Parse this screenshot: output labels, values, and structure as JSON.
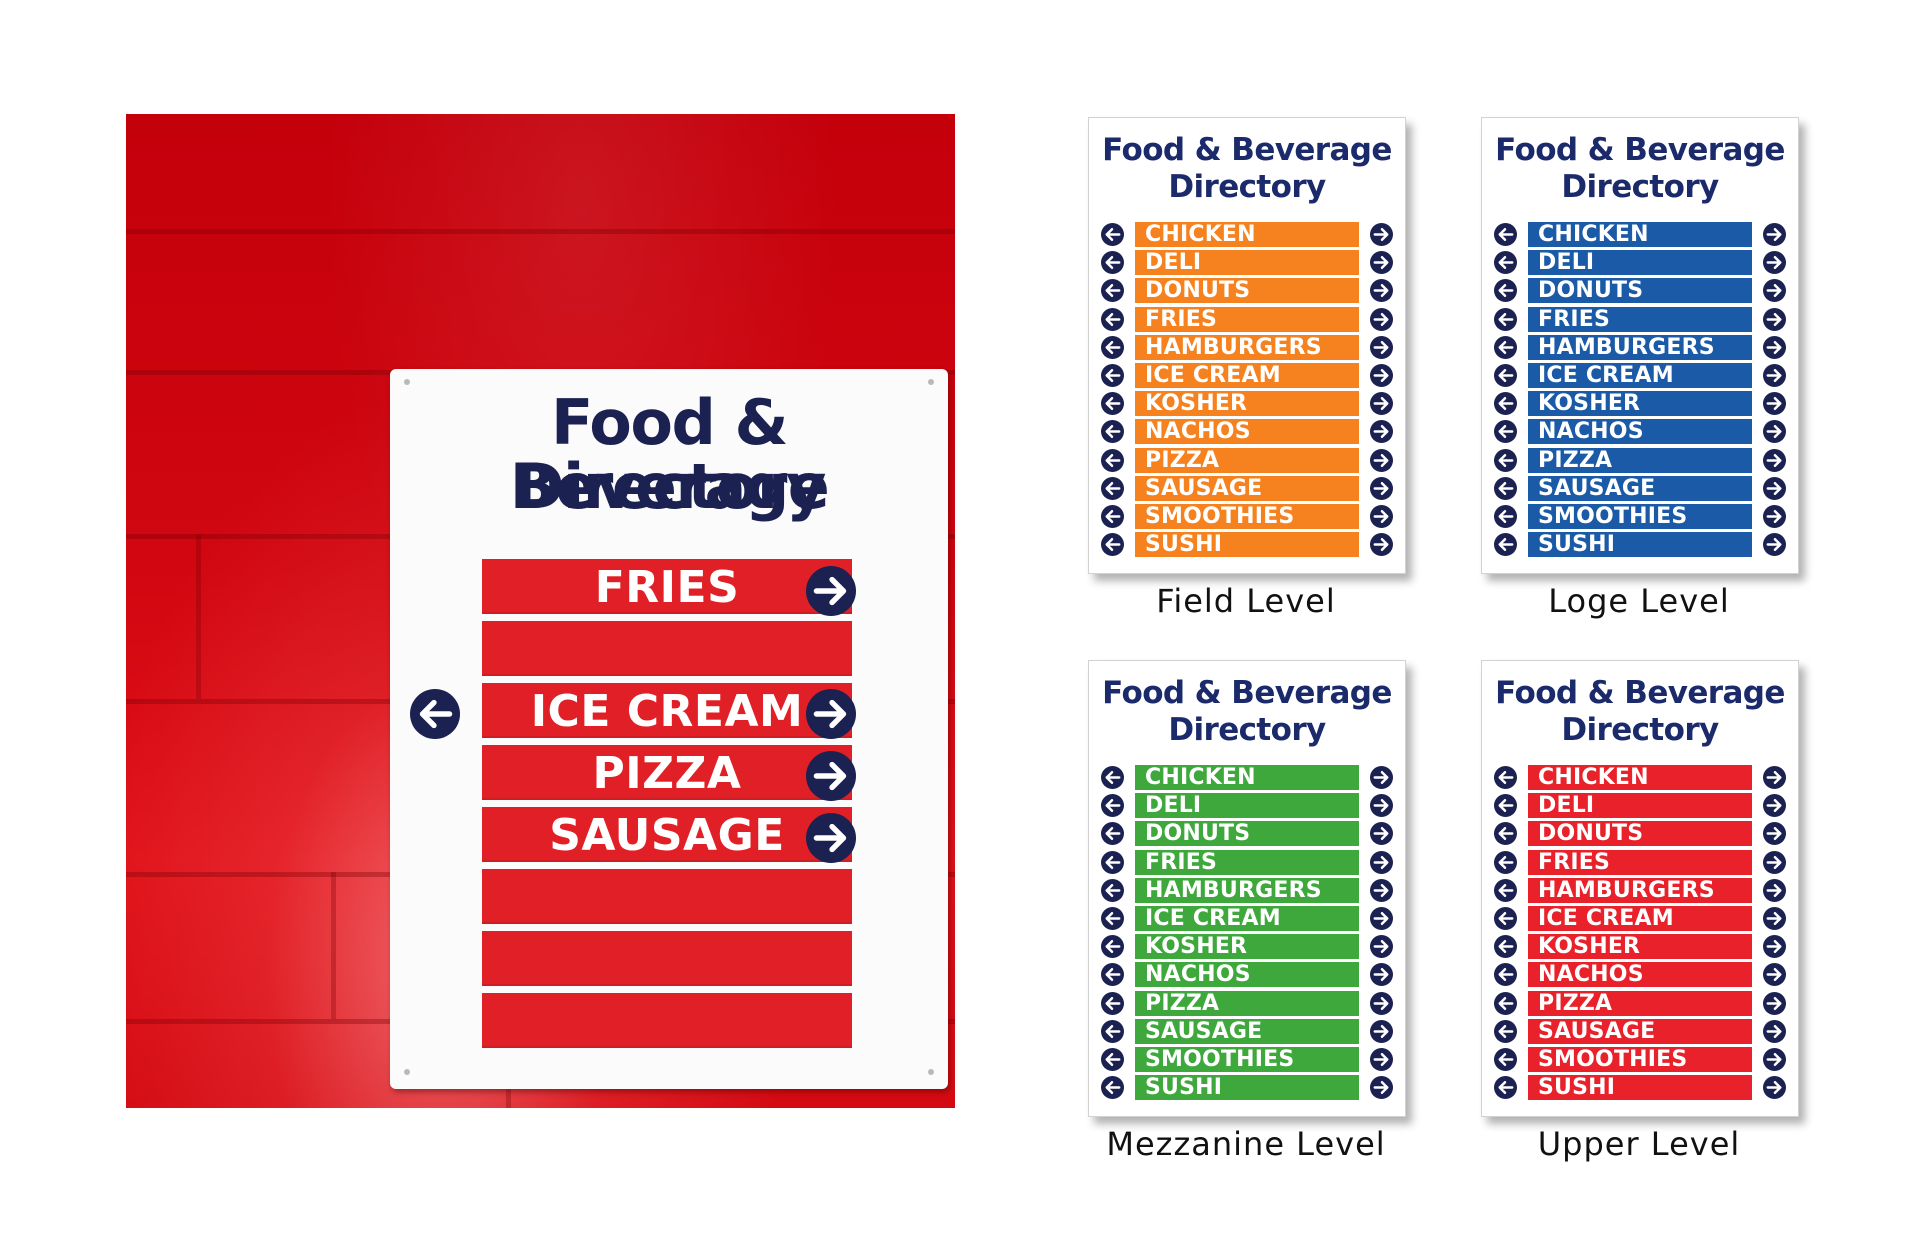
{
  "photo_sign": {
    "title_line1": "Food & Beverage",
    "title_line2": "Directory",
    "rows": [
      "FRIES",
      "",
      "ICE CREAM",
      "PIZZA",
      "SAUSAGE",
      "",
      "",
      ""
    ],
    "bar_color": "#e02026",
    "arrow_color": "#1b2150"
  },
  "directory": {
    "title_line1": "Food & Beverage",
    "title_line2": "Directory",
    "items": [
      "CHICKEN",
      "DELI",
      "DONUTS",
      "FRIES",
      "HAMBURGERS",
      "ICE CREAM",
      "KOSHER",
      "NACHOS",
      "PIZZA",
      "SAUSAGE",
      "SMOOTHIES",
      "SUSHI"
    ]
  },
  "levels": [
    {
      "caption": "Field Level",
      "color": "#f5821f"
    },
    {
      "caption": "Loge Level",
      "color": "#1b5aa6"
    },
    {
      "caption": "Mezzanine Level",
      "color": "#3fa83c"
    },
    {
      "caption": "Upper Level",
      "color": "#e8212a"
    }
  ],
  "colors": {
    "navy": "#1b2150",
    "wall_red": "#d10610"
  },
  "icons": {
    "left_arrow": "arrow-left-icon",
    "right_arrow": "arrow-right-icon"
  }
}
